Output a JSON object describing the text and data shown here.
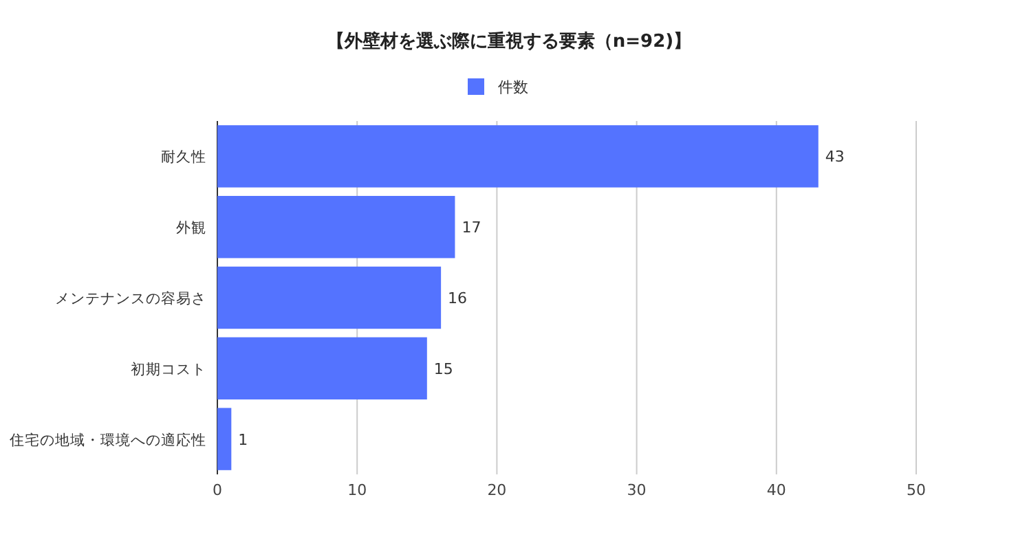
{
  "chart_data": {
    "type": "bar",
    "orientation": "horizontal",
    "title": "【外壁材を選ぶ際に重視する要素（n=92)】",
    "categories": [
      "耐久性",
      "外観",
      "メンテナンスの容易さ",
      "初期コスト",
      "住宅の地域・環境への適応性"
    ],
    "series": [
      {
        "name": "件数",
        "color": "#5473ff",
        "values": [
          43,
          17,
          16,
          15,
          1
        ]
      }
    ],
    "xlim": [
      0,
      50
    ],
    "xticks": [
      0,
      10,
      20,
      30,
      40,
      50
    ],
    "grid": "x",
    "legend": "top",
    "data_labels": true
  }
}
